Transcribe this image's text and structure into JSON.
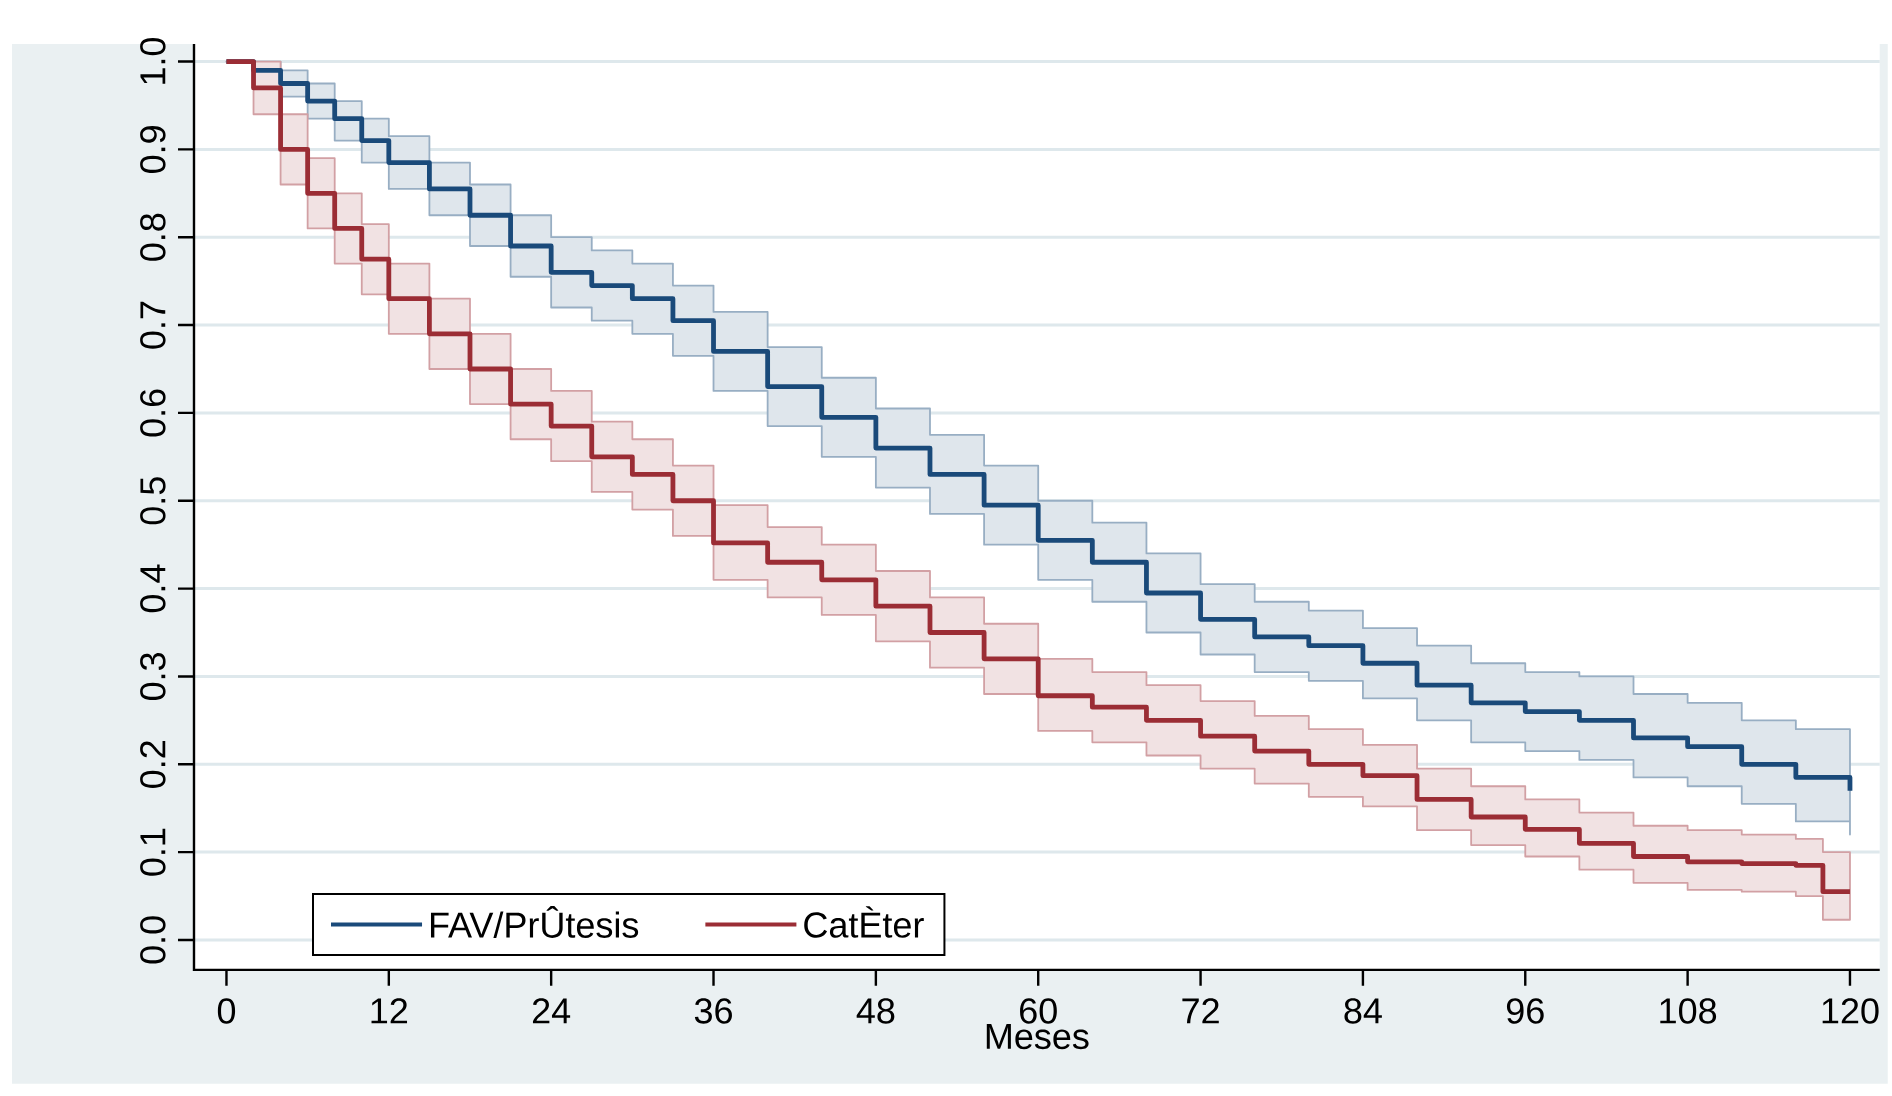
{
  "chart_data": {
    "type": "step",
    "xlabel": "Meses",
    "xlim": [
      -2.4,
      122.2
    ],
    "ylim": [
      -0.034,
      1.02
    ],
    "xticks": [
      0,
      12,
      24,
      36,
      48,
      60,
      72,
      84,
      96,
      108,
      120
    ],
    "yticks": [
      {
        "value": 0,
        "label": "0.0"
      },
      0.1,
      0.2,
      0.3,
      0.4,
      0.5,
      0.6,
      0.7,
      0.8,
      0.9,
      {
        "value": 1,
        "label": "1.0"
      }
    ],
    "grid": "y",
    "legend": "bottom",
    "x": [
      0,
      2,
      4,
      6,
      8,
      10,
      12,
      15,
      18,
      21,
      24,
      27,
      30,
      33,
      36,
      40,
      44,
      48,
      52,
      56,
      60,
      64,
      68,
      72,
      76,
      80,
      84,
      88,
      92,
      96,
      100,
      104,
      108,
      112,
      116,
      118,
      120
    ],
    "series": [
      {
        "name": "FAV/PrÛtesis",
        "color": "#1a4a7a",
        "values": [
          1.0,
          0.99,
          0.975,
          0.955,
          0.935,
          0.91,
          0.885,
          0.855,
          0.825,
          0.79,
          0.76,
          0.745,
          0.73,
          0.705,
          0.67,
          0.63,
          0.595,
          0.56,
          0.53,
          0.495,
          0.455,
          0.43,
          0.395,
          0.365,
          0.345,
          0.335,
          0.315,
          0.29,
          0.27,
          0.26,
          0.25,
          0.23,
          0.22,
          0.2,
          0.185,
          0.185,
          0.17
        ],
        "upper": [
          1.0,
          1.0,
          0.99,
          0.975,
          0.955,
          0.935,
          0.915,
          0.885,
          0.86,
          0.825,
          0.8,
          0.785,
          0.77,
          0.745,
          0.715,
          0.675,
          0.64,
          0.605,
          0.575,
          0.54,
          0.5,
          0.475,
          0.44,
          0.405,
          0.385,
          0.375,
          0.355,
          0.335,
          0.315,
          0.305,
          0.3,
          0.28,
          0.27,
          0.25,
          0.24,
          0.24,
          0.24
        ],
        "lower": [
          1.0,
          0.98,
          0.96,
          0.935,
          0.91,
          0.885,
          0.855,
          0.825,
          0.79,
          0.755,
          0.72,
          0.705,
          0.69,
          0.665,
          0.625,
          0.585,
          0.55,
          0.515,
          0.485,
          0.45,
          0.41,
          0.385,
          0.35,
          0.325,
          0.305,
          0.295,
          0.275,
          0.25,
          0.225,
          0.215,
          0.205,
          0.185,
          0.175,
          0.155,
          0.135,
          0.135,
          0.12
        ]
      },
      {
        "name": "CatÈter",
        "color": "#9b2d35",
        "values": [
          1.0,
          0.97,
          0.9,
          0.85,
          0.81,
          0.775,
          0.73,
          0.69,
          0.65,
          0.61,
          0.585,
          0.55,
          0.53,
          0.5,
          0.452,
          0.43,
          0.41,
          0.38,
          0.35,
          0.32,
          0.278,
          0.265,
          0.25,
          0.232,
          0.215,
          0.2,
          0.187,
          0.16,
          0.14,
          0.126,
          0.11,
          0.095,
          0.089,
          0.087,
          0.085,
          0.055,
          0.055
        ],
        "upper": [
          1.0,
          1.0,
          0.94,
          0.89,
          0.85,
          0.815,
          0.77,
          0.73,
          0.69,
          0.65,
          0.625,
          0.59,
          0.57,
          0.54,
          0.495,
          0.47,
          0.45,
          0.42,
          0.39,
          0.36,
          0.32,
          0.305,
          0.29,
          0.272,
          0.255,
          0.24,
          0.222,
          0.195,
          0.175,
          0.16,
          0.145,
          0.13,
          0.125,
          0.12,
          0.115,
          0.1,
          0.1
        ],
        "lower": [
          1.0,
          0.94,
          0.86,
          0.81,
          0.77,
          0.735,
          0.69,
          0.65,
          0.61,
          0.57,
          0.545,
          0.51,
          0.49,
          0.46,
          0.41,
          0.39,
          0.37,
          0.34,
          0.31,
          0.28,
          0.238,
          0.225,
          0.21,
          0.195,
          0.178,
          0.163,
          0.152,
          0.125,
          0.108,
          0.095,
          0.08,
          0.065,
          0.057,
          0.055,
          0.05,
          0.023,
          0.023
        ]
      }
    ]
  }
}
